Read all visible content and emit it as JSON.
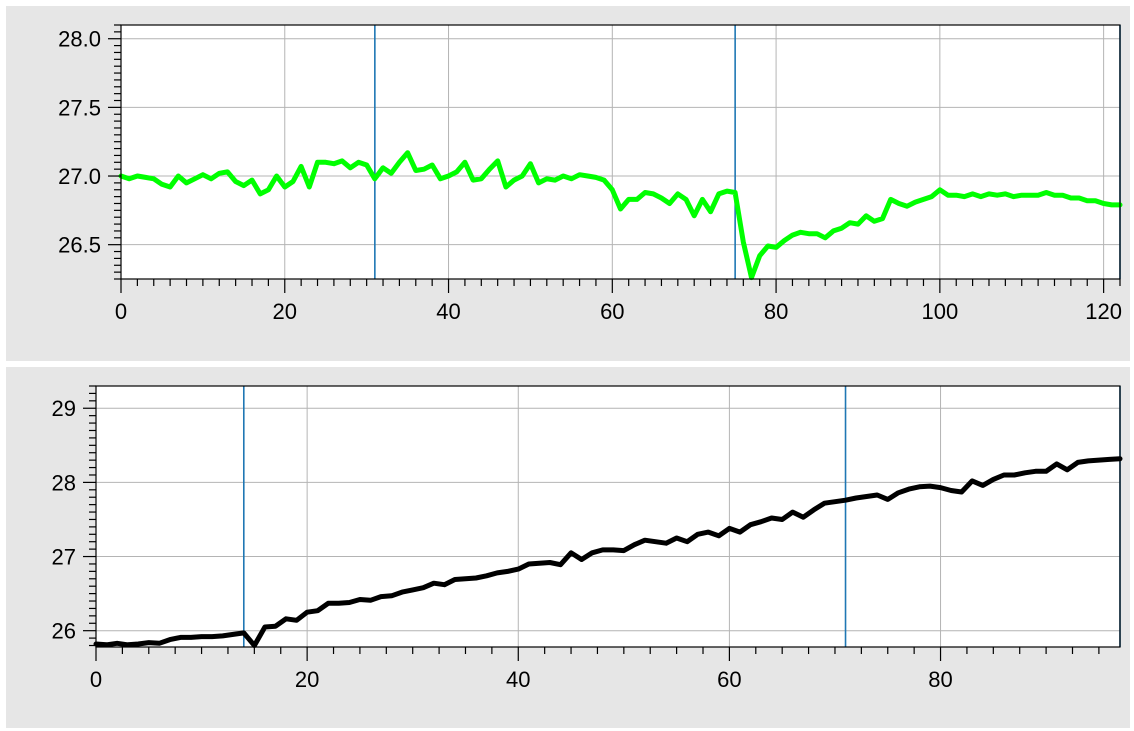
{
  "colors": {
    "panel_background": "#e6e6e6",
    "grid": "#b4b4b4",
    "marker": "#1f77b4"
  },
  "chart_data": [
    {
      "type": "line",
      "title": "",
      "xlabel": "",
      "ylabel": "",
      "xlim": [
        0,
        122
      ],
      "ylim": [
        26.25,
        28.1
      ],
      "grid": true,
      "x_ticks": [
        0,
        20,
        40,
        60,
        80,
        100,
        120
      ],
      "x_tick_labels": [
        "0",
        "20",
        "40",
        "60",
        "80",
        "100",
        "120"
      ],
      "y_ticks": [
        26.5,
        27.0,
        27.5,
        28.0
      ],
      "y_tick_labels": [
        "26.5",
        "27.0",
        "27.5",
        "28.0"
      ],
      "vertical_markers": [
        31,
        75,
        122
      ],
      "series": [
        {
          "color": "#00ff00",
          "x": [
            0,
            1,
            2,
            3,
            4,
            5,
            6,
            7,
            8,
            9,
            10,
            11,
            12,
            13,
            14,
            15,
            16,
            17,
            18,
            19,
            20,
            21,
            22,
            23,
            24,
            25,
            26,
            27,
            28,
            29,
            30,
            31,
            32,
            33,
            34,
            35,
            36,
            37,
            38,
            39,
            40,
            41,
            42,
            43,
            44,
            45,
            46,
            47,
            48,
            49,
            50,
            51,
            52,
            53,
            54,
            55,
            56,
            57,
            58,
            59,
            60,
            61,
            62,
            63,
            64,
            65,
            66,
            67,
            68,
            69,
            70,
            71,
            72,
            73,
            74,
            75,
            76,
            77,
            78,
            79,
            80,
            81,
            82,
            83,
            84,
            85,
            86,
            87,
            88,
            89,
            90,
            91,
            92,
            93,
            94,
            95,
            96,
            97,
            98,
            99,
            100,
            101,
            102,
            103,
            104,
            105,
            106,
            107,
            108,
            109,
            110,
            111,
            112,
            113,
            114,
            115,
            116,
            117,
            118,
            119,
            120,
            121,
            122
          ],
          "values": [
            27.0,
            26.98,
            27.0,
            26.99,
            26.98,
            26.94,
            26.92,
            27.0,
            26.95,
            26.98,
            27.01,
            26.98,
            27.02,
            27.03,
            26.96,
            26.93,
            26.97,
            26.87,
            26.9,
            27.0,
            26.92,
            26.96,
            27.07,
            26.92,
            27.1,
            27.1,
            27.09,
            27.11,
            27.06,
            27.1,
            27.08,
            26.98,
            27.06,
            27.02,
            27.1,
            27.17,
            27.04,
            27.05,
            27.08,
            26.98,
            27.0,
            27.03,
            27.1,
            26.97,
            26.98,
            27.05,
            27.11,
            26.92,
            26.97,
            27.0,
            27.09,
            26.95,
            26.98,
            26.97,
            27.0,
            26.98,
            27.01,
            27.0,
            26.99,
            26.97,
            26.9,
            26.76,
            26.83,
            26.83,
            26.88,
            26.87,
            26.84,
            26.8,
            26.87,
            26.83,
            26.71,
            26.83,
            26.74,
            26.87,
            26.89,
            26.88,
            26.52,
            26.26,
            26.42,
            26.49,
            26.48,
            26.53,
            26.57,
            26.59,
            26.58,
            26.58,
            26.55,
            26.6,
            26.62,
            26.66,
            26.65,
            26.71,
            26.67,
            26.69,
            26.83,
            26.8,
            26.78,
            26.81,
            26.83,
            26.85,
            26.9,
            26.86,
            26.86,
            26.85,
            26.87,
            26.85,
            26.87,
            26.86,
            26.87,
            26.85,
            26.86,
            26.86,
            26.86,
            26.88,
            26.86,
            26.86,
            26.84,
            26.84,
            26.82,
            26.82,
            26.8,
            26.79,
            26.79
          ]
        }
      ]
    },
    {
      "type": "line",
      "title": "",
      "xlabel": "",
      "ylabel": "",
      "xlim": [
        0,
        97
      ],
      "ylim": [
        25.78,
        29.3
      ],
      "grid": true,
      "x_ticks": [
        0,
        20,
        40,
        60,
        80
      ],
      "x_tick_labels": [
        "0",
        "20",
        "40",
        "60",
        "80"
      ],
      "y_ticks": [
        26,
        27,
        28,
        29
      ],
      "y_tick_labels": [
        "26",
        "27",
        "28",
        "29"
      ],
      "vertical_markers": [
        14,
        71,
        97
      ],
      "series": [
        {
          "color": "#000000",
          "x": [
            0,
            1,
            2,
            3,
            4,
            5,
            6,
            7,
            8,
            9,
            10,
            11,
            12,
            13,
            14,
            15,
            16,
            17,
            18,
            19,
            20,
            21,
            22,
            23,
            24,
            25,
            26,
            27,
            28,
            29,
            30,
            31,
            32,
            33,
            34,
            35,
            36,
            37,
            38,
            39,
            40,
            41,
            42,
            43,
            44,
            45,
            46,
            47,
            48,
            49,
            50,
            51,
            52,
            53,
            54,
            55,
            56,
            57,
            58,
            59,
            60,
            61,
            62,
            63,
            64,
            65,
            66,
            67,
            68,
            69,
            70,
            71,
            72,
            73,
            74,
            75,
            76,
            77,
            78,
            79,
            80,
            81,
            82,
            83,
            84,
            85,
            86,
            87,
            88,
            89,
            90,
            91,
            92,
            93,
            94,
            95,
            96,
            97
          ],
          "values": [
            25.82,
            25.81,
            25.83,
            25.81,
            25.82,
            25.84,
            25.83,
            25.88,
            25.91,
            25.91,
            25.92,
            25.92,
            25.93,
            25.95,
            25.97,
            25.8,
            26.05,
            26.06,
            26.16,
            26.14,
            26.25,
            26.27,
            26.37,
            26.37,
            26.38,
            26.42,
            26.41,
            26.46,
            26.47,
            26.52,
            26.55,
            26.58,
            26.64,
            26.62,
            26.69,
            26.7,
            26.71,
            26.74,
            26.78,
            26.8,
            26.83,
            26.9,
            26.91,
            26.92,
            26.89,
            27.05,
            26.96,
            27.05,
            27.09,
            27.09,
            27.08,
            27.16,
            27.22,
            27.2,
            27.18,
            27.25,
            27.2,
            27.3,
            27.33,
            27.28,
            27.38,
            27.33,
            27.43,
            27.47,
            27.52,
            27.5,
            27.6,
            27.53,
            27.63,
            27.72,
            27.74,
            27.76,
            27.79,
            27.81,
            27.83,
            27.77,
            27.86,
            27.91,
            27.94,
            27.95,
            27.93,
            27.89,
            27.87,
            28.02,
            27.96,
            28.04,
            28.1,
            28.1,
            28.13,
            28.15,
            28.15,
            28.25,
            28.17,
            28.27,
            28.29,
            28.3,
            28.31,
            28.32
          ]
        }
      ]
    }
  ]
}
